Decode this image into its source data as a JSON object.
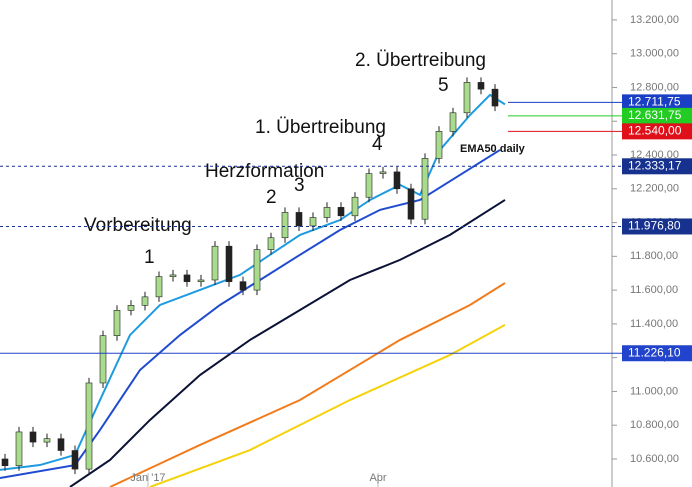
{
  "chart_data": {
    "type": "candlestick",
    "xlim": [
      0,
      612
    ],
    "ylim": [
      10434,
      13318
    ],
    "xticks": [
      {
        "value": 148,
        "label": "Jan '17"
      },
      {
        "value": 378,
        "label": "Apr"
      }
    ],
    "yticks": [
      {
        "value": 10600,
        "label": "10.600,00"
      },
      {
        "value": 10800,
        "label": "10.800,00"
      },
      {
        "value": 11000,
        "label": "11.000,00"
      },
      {
        "value": 11200,
        "label": "11.200,00"
      },
      {
        "value": 11400,
        "label": "11.400,00"
      },
      {
        "value": 11600,
        "label": "11.600,00"
      },
      {
        "value": 11800,
        "label": "11.800,00"
      },
      {
        "value": 12000,
        "label": "12.000,00"
      },
      {
        "value": 12200,
        "label": "12.200,00"
      },
      {
        "value": 12400,
        "label": "12.400,00"
      },
      {
        "value": 12600,
        "label": "12.600,00"
      },
      {
        "value": 12800,
        "label": "12.800,00"
      },
      {
        "value": 13000,
        "label": "13.000,00"
      },
      {
        "value": 13200,
        "label": "13.200,00"
      }
    ],
    "up_color": "#a8dc8c",
    "down_color": "#222222",
    "x": [
      5,
      19,
      33,
      47,
      61,
      75,
      89,
      103,
      117,
      131,
      145,
      159,
      173,
      187,
      201,
      215,
      229,
      243,
      257,
      271,
      285,
      299,
      313,
      327,
      341,
      355,
      369,
      383,
      397,
      411,
      425,
      439,
      453,
      467,
      481,
      495
    ],
    "open": [
      10600,
      10560,
      10760,
      10700,
      10720,
      10650,
      10540,
      11050,
      11330,
      11480,
      11510,
      11560,
      11680,
      11690,
      11650,
      11660,
      11860,
      11650,
      11600,
      11840,
      11910,
      12060,
      11980,
      12030,
      12090,
      12040,
      12150,
      12290,
      12300,
      12200,
      12020,
      12380,
      12540,
      12650,
      12830,
      12790
    ],
    "high": [
      10630,
      10790,
      10790,
      10750,
      10750,
      10680,
      11080,
      11360,
      11510,
      11540,
      11590,
      11710,
      11720,
      11720,
      11690,
      11890,
      11890,
      11680,
      11870,
      11940,
      12090,
      12090,
      12060,
      12120,
      12120,
      12180,
      12320,
      12330,
      12330,
      12230,
      12410,
      12570,
      12680,
      12860,
      12860,
      12820
    ],
    "low": [
      10530,
      10530,
      10670,
      10670,
      10620,
      10510,
      10510,
      11020,
      11300,
      11450,
      11480,
      11530,
      11650,
      11620,
      11620,
      11630,
      11620,
      11570,
      11570,
      11810,
      11880,
      11950,
      11950,
      12000,
      12010,
      12010,
      12120,
      12260,
      12170,
      11990,
      11990,
      12350,
      12510,
      12620,
      12760,
      12660
    ],
    "close": [
      10560,
      10760,
      10700,
      10720,
      10650,
      10540,
      11050,
      11330,
      11480,
      11510,
      11560,
      11680,
      11690,
      11650,
      11660,
      11860,
      11650,
      11600,
      11840,
      11910,
      12060,
      11980,
      12030,
      12090,
      12040,
      12150,
      12290,
      12300,
      12200,
      12020,
      12380,
      12540,
      12650,
      12830,
      12790,
      12690
    ],
    "lines": [
      {
        "color": "#f5d20a",
        "x": [
          150,
          250,
          350,
          450,
          505
        ],
        "values": [
          10434,
          10653,
          10949,
          11216,
          11394
        ]
      },
      {
        "color": "#f27c1c",
        "x": [
          110,
          200,
          300,
          400,
          470,
          505
        ],
        "values": [
          10434,
          10683,
          10949,
          11305,
          11512,
          11642
        ]
      },
      {
        "color": "#0b1236",
        "x": [
          70,
          110,
          150,
          200,
          250,
          300,
          350,
          400,
          450,
          505
        ],
        "values": [
          10434,
          10594,
          10831,
          11097,
          11305,
          11482,
          11660,
          11779,
          11927,
          12134
        ]
      },
      {
        "color": "#1f4bd0",
        "x": [
          0,
          75,
          100,
          140,
          180,
          220,
          260,
          300,
          340,
          380,
          420,
          460,
          500
        ],
        "values": [
          10487,
          10564,
          10772,
          11127,
          11334,
          11512,
          11660,
          11809,
          11956,
          12075,
          12134,
          12282,
          12430
        ]
      },
      {
        "color": "#1e9be0",
        "x": [
          0,
          40,
          75,
          100,
          130,
          160,
          200,
          240,
          270,
          300,
          340,
          370,
          400,
          420,
          440,
          470,
          490,
          505
        ],
        "values": [
          10535,
          10564,
          10624,
          10949,
          11334,
          11512,
          11601,
          11690,
          11809,
          11927,
          12015,
          12134,
          12223,
          12164,
          12430,
          12637,
          12756,
          12700
        ]
      }
    ],
    "levels": [
      {
        "value": 12711.75,
        "label": "12.711,75",
        "color": "#1a3fc4",
        "style": "short"
      },
      {
        "value": 12631.75,
        "label": "12.631,75",
        "color": "#22cc22",
        "style": "short"
      },
      {
        "value": 12540.0,
        "label": "12.540,00",
        "color": "#e0101a",
        "style": "short"
      },
      {
        "value": 12333.17,
        "label": "12.333,17",
        "color": "#17318f",
        "style": "dashed"
      },
      {
        "value": 11976.8,
        "label": "11.976,80",
        "color": "#17318f",
        "style": "dashed"
      },
      {
        "value": 11226.1,
        "label": "11.226,10",
        "color": "#2244cc",
        "style": "solid"
      }
    ],
    "annotations": [
      "2. Übertreibung",
      "5",
      "1. Übertreibung",
      "4",
      "Herzformation",
      "2",
      "3",
      "Vorbereitung",
      "1",
      "EMA50 daily"
    ]
  }
}
